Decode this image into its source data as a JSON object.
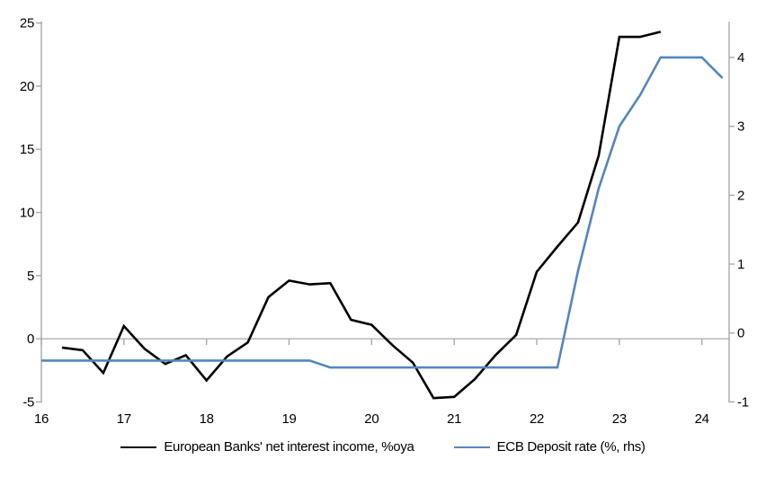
{
  "chart_data": {
    "type": "line",
    "title": "",
    "legend_position": "bottom",
    "grid": "zero-line-only",
    "x_axis": {
      "range": [
        16,
        24.33
      ],
      "ticks": [
        16,
        17,
        18,
        19,
        20,
        21,
        22,
        23,
        24
      ]
    },
    "left_axis": {
      "range": [
        -5,
        25
      ],
      "ticks": [
        25,
        20,
        15,
        10,
        5,
        0,
        -5
      ]
    },
    "right_axis": {
      "range": [
        -1,
        4.5
      ],
      "ticks": [
        4,
        3,
        2,
        1,
        0,
        -1
      ]
    },
    "series": [
      {
        "name": "European Banks' net interest income, %oya",
        "axis": "left",
        "color": "#000000",
        "x": [
          16.25,
          16.5,
          16.75,
          17.0,
          17.25,
          17.5,
          17.75,
          18.0,
          18.25,
          18.5,
          18.75,
          19.0,
          19.25,
          19.5,
          19.75,
          20.0,
          20.25,
          20.5,
          20.75,
          21.0,
          21.25,
          21.5,
          21.75,
          22.0,
          22.25,
          22.5,
          22.75,
          23.0,
          23.25,
          23.5
        ],
        "values": [
          -0.7,
          -0.9,
          -2.7,
          1.0,
          -0.8,
          -2.0,
          -1.3,
          -3.3,
          -1.4,
          -0.3,
          3.3,
          4.6,
          4.3,
          4.4,
          1.5,
          1.1,
          -0.5,
          -1.9,
          -4.7,
          -4.6,
          -3.2,
          -1.3,
          0.3,
          5.3,
          7.3,
          9.2,
          14.5,
          23.9,
          23.9,
          24.3
        ]
      },
      {
        "name": "ECB Deposit rate (%, rhs)",
        "axis": "right",
        "color": "#5486bf",
        "x": [
          16.0,
          16.25,
          16.5,
          16.75,
          17.0,
          17.25,
          17.5,
          17.75,
          18.0,
          18.25,
          18.5,
          18.75,
          19.0,
          19.25,
          19.5,
          19.75,
          20.0,
          20.25,
          20.5,
          20.75,
          21.0,
          21.25,
          21.5,
          21.75,
          22.0,
          22.25,
          22.5,
          22.75,
          23.0,
          23.25,
          23.5,
          23.75,
          24.0,
          24.25
        ],
        "values": [
          -0.4,
          -0.4,
          -0.4,
          -0.4,
          -0.4,
          -0.4,
          -0.4,
          -0.4,
          -0.4,
          -0.4,
          -0.4,
          -0.4,
          -0.4,
          -0.4,
          -0.5,
          -0.5,
          -0.5,
          -0.5,
          -0.5,
          -0.5,
          -0.5,
          -0.5,
          -0.5,
          -0.5,
          -0.5,
          -0.5,
          0.9,
          2.1,
          3.0,
          3.45,
          4.0,
          4.0,
          4.0,
          3.7
        ]
      }
    ]
  },
  "colors": {
    "axis": "#a8a8a8",
    "zero_line": "#a8a8a8",
    "background": "#ffffff",
    "text": "#000000"
  }
}
